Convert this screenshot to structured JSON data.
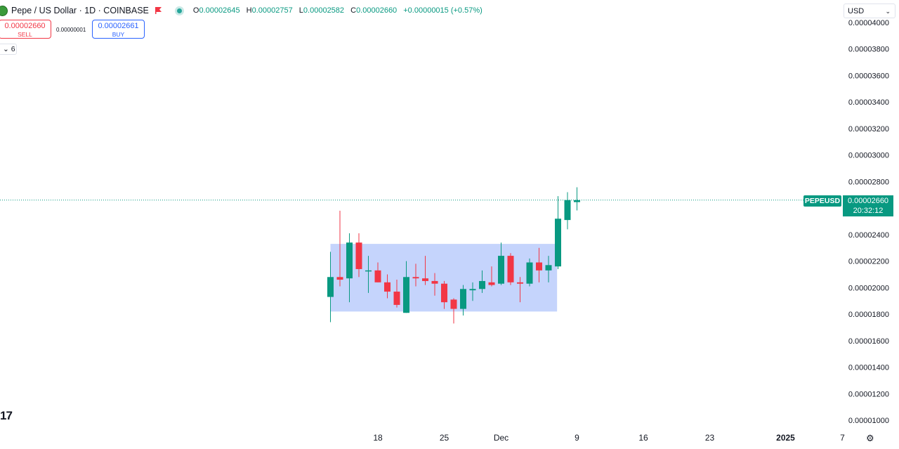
{
  "header": {
    "title": "Pepe / US Dollar · 1D · COINBASE",
    "ohlc": [
      {
        "k": "O",
        "v": "0.00002645"
      },
      {
        "k": "H",
        "v": "0.00002757"
      },
      {
        "k": "L",
        "v": "0.00002582"
      },
      {
        "k": "C",
        "v": "0.00002660"
      }
    ],
    "change": "+0.00000015 (+0.57%)",
    "icons": {
      "logo": "pepe-logo-icon",
      "flag": "flag-icon",
      "status": "market-open-dot-icon"
    }
  },
  "trade": {
    "sell_price": "0.00002660",
    "sell_label": "SELL",
    "spread": "0.00000001",
    "buy_price": "0.00002661",
    "buy_label": "BUY"
  },
  "indicators_toggle": "⌄ 6",
  "currency": "USD",
  "logo_text": "17",
  "last_price": {
    "symbol": "PEPEUSD",
    "price": "0.00002660",
    "countdown": "20:32:12"
  },
  "colors": {
    "up": "#089981",
    "down": "#f23645",
    "range_box": "#bbcdfb"
  },
  "chart_data": {
    "type": "candlestick",
    "y_ticks": [
      "0.00001000",
      "0.00001200",
      "0.00001400",
      "0.00001600",
      "0.00001800",
      "0.00002000",
      "0.00002200",
      "0.00002400",
      "0.00002800",
      "0.00003000",
      "0.00003200",
      "0.00003400",
      "0.00003600",
      "0.00003800",
      "0.00004000"
    ],
    "y_range": [
      9.9e-06,
      4.01e-05
    ],
    "x_ticks": [
      {
        "label": "18",
        "day": 18
      },
      {
        "label": "25",
        "day": 25
      },
      {
        "label": "Dec",
        "day": 31
      },
      {
        "label": "9",
        "day": 39
      },
      {
        "label": "16",
        "day": 46
      },
      {
        "label": "23",
        "day": 53
      },
      {
        "label": "2025",
        "day": 61,
        "bold": true
      },
      {
        "label": "7",
        "day": 67
      }
    ],
    "day_axis_note": "days counted from Nov 1",
    "candles": [
      {
        "day": 13,
        "o": 1.93e-05,
        "h": 2.27e-05,
        "l": 1.74e-05,
        "c": 2.08e-05
      },
      {
        "day": 14,
        "o": 2.08e-05,
        "h": 2.58e-05,
        "l": 2.01e-05,
        "c": 2.06e-05
      },
      {
        "day": 15,
        "o": 2.07e-05,
        "h": 2.41e-05,
        "l": 1.89e-05,
        "c": 2.34e-05
      },
      {
        "day": 16,
        "o": 2.34e-05,
        "h": 2.41e-05,
        "l": 2.08e-05,
        "c": 2.14e-05
      },
      {
        "day": 17,
        "o": 2.13e-05,
        "h": 2.24e-05,
        "l": 1.96e-05,
        "c": 2.13e-05
      },
      {
        "day": 18,
        "o": 2.13e-05,
        "h": 2.19e-05,
        "l": 2.04e-05,
        "c": 2.04e-05
      },
      {
        "day": 19,
        "o": 2.04e-05,
        "h": 2.1e-05,
        "l": 1.92e-05,
        "c": 1.97e-05
      },
      {
        "day": 20,
        "o": 1.97e-05,
        "h": 2.06e-05,
        "l": 1.85e-05,
        "c": 1.87e-05
      },
      {
        "day": 21,
        "o": 1.81e-05,
        "h": 2.2e-05,
        "l": 1.81e-05,
        "c": 2.08e-05
      },
      {
        "day": 22,
        "o": 2.08e-05,
        "h": 2.18e-05,
        "l": 2.01e-05,
        "c": 2.07e-05
      },
      {
        "day": 23,
        "o": 2.07e-05,
        "h": 2.24e-05,
        "l": 2.02e-05,
        "c": 2.05e-05
      },
      {
        "day": 24,
        "o": 2.05e-05,
        "h": 2.11e-05,
        "l": 1.94e-05,
        "c": 2.03e-05
      },
      {
        "day": 25,
        "o": 2.03e-05,
        "h": 2.05e-05,
        "l": 1.84e-05,
        "c": 1.89e-05
      },
      {
        "day": 26,
        "o": 1.91e-05,
        "h": 1.92e-05,
        "l": 1.73e-05,
        "c": 1.84e-05
      },
      {
        "day": 27,
        "o": 1.84e-05,
        "h": 2.02e-05,
        "l": 1.79e-05,
        "c": 1.99e-05
      },
      {
        "day": 28,
        "o": 1.98e-05,
        "h": 2.04e-05,
        "l": 1.9e-05,
        "c": 1.99e-05
      },
      {
        "day": 29,
        "o": 1.99e-05,
        "h": 2.13e-05,
        "l": 1.96e-05,
        "c": 2.05e-05
      },
      {
        "day": 30,
        "o": 2.04e-05,
        "h": 2.16e-05,
        "l": 2.01e-05,
        "c": 2.02e-05
      },
      {
        "day": 31,
        "o": 2.03e-05,
        "h": 2.34e-05,
        "l": 2.02e-05,
        "c": 2.24e-05
      },
      {
        "day": 32,
        "o": 2.24e-05,
        "h": 2.26e-05,
        "l": 2.02e-05,
        "c": 2.04e-05
      },
      {
        "day": 33,
        "o": 2.04e-05,
        "h": 2.08e-05,
        "l": 1.89e-05,
        "c": 2.03e-05
      },
      {
        "day": 34,
        "o": 2.03e-05,
        "h": 2.22e-05,
        "l": 2.01e-05,
        "c": 2.19e-05
      },
      {
        "day": 35,
        "o": 2.19e-05,
        "h": 2.3e-05,
        "l": 2.04e-05,
        "c": 2.13e-05
      },
      {
        "day": 36,
        "o": 2.13e-05,
        "h": 2.24e-05,
        "l": 2.04e-05,
        "c": 2.17e-05
      },
      {
        "day": 37,
        "o": 2.16e-05,
        "h": 2.69e-05,
        "l": 2.14e-05,
        "c": 2.52e-05
      },
      {
        "day": 38,
        "o": 2.51e-05,
        "h": 2.72e-05,
        "l": 2.44e-05,
        "c": 2.66e-05
      },
      {
        "day": 39,
        "o": 2.645e-05,
        "h": 2.757e-05,
        "l": 2.582e-05,
        "c": 2.66e-05
      }
    ],
    "range_box": {
      "day_start": 13,
      "day_end": 36.9,
      "top": 2.33e-05,
      "bottom": 1.82e-05
    },
    "last_price_line": 2.66e-05
  }
}
